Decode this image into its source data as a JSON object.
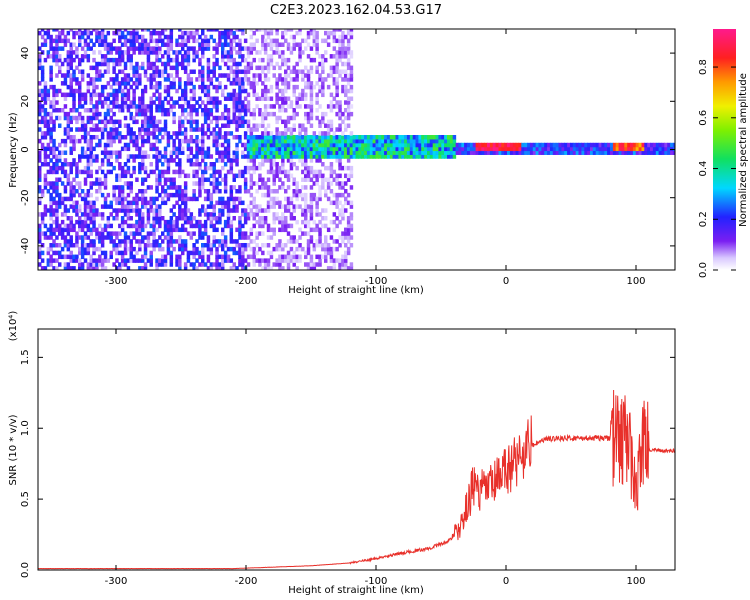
{
  "title": "C2E3.2023.162.04.53.G17",
  "colors": {
    "spectrogram_background": "#ffffff",
    "snr_line": "#e8302a",
    "axis": "#000000"
  },
  "chart_data": [
    {
      "type": "heatmap",
      "xlabel": "Height of straight line (km)",
      "ylabel": "Frequency (Hz)",
      "xlim": [
        -360,
        130
      ],
      "ylim": [
        -50,
        50
      ],
      "x_ticks": [
        -300,
        -200,
        -100,
        0,
        100
      ],
      "x_tick_labels": [
        "-300",
        "-200",
        "-100",
        "0",
        "100"
      ],
      "y_ticks": [
        -40,
        -20,
        0,
        20,
        40
      ],
      "y_tick_labels": [
        "-40",
        "-20",
        "0",
        "20",
        "40"
      ],
      "colormap": "rainbow (white-violet-blue-cyan-green-yellow-orange-red-magenta)",
      "colorbar": {
        "label": "Normalized spectral amplitude",
        "range": [
          0,
          0.95
        ],
        "ticks": [
          0.0,
          0.2,
          0.4,
          0.6,
          0.8
        ],
        "tick_labels": [
          "0.0",
          "0.2",
          "0.4",
          "0.6",
          "0.8"
        ]
      },
      "features": [
        {
          "x_range": [
            -360,
            -200
          ],
          "freq_range": [
            -50,
            50
          ],
          "amplitude": [
            0.05,
            0.25
          ]
        },
        {
          "x_range": [
            -200,
            -120
          ],
          "freq_range": [
            -50,
            50
          ],
          "amplitude": [
            0.02,
            0.12
          ]
        },
        {
          "x_range": [
            -200,
            -40
          ],
          "freq_center": 0,
          "freq_halfwidth": 5,
          "amplitude": [
            0.2,
            0.5
          ]
        },
        {
          "x_range": [
            -40,
            130
          ],
          "freq_center": 0,
          "freq_halfwidth": 2,
          "amplitude": [
            0.1,
            0.3
          ]
        },
        {
          "x_range": [
            -25,
            10
          ],
          "freq_center": 0,
          "amplitude": [
            0.8,
            0.95
          ]
        },
        {
          "x_range": [
            80,
            105
          ],
          "freq_center": 0,
          "amplitude": [
            0.7,
            0.9
          ]
        }
      ]
    },
    {
      "type": "line",
      "xlabel": "Height of straight line (km)",
      "ylabel": "SNR (10 * v/v)",
      "y_multiplier": "(x10⁴)",
      "xlim": [
        -360,
        130
      ],
      "ylim": [
        0,
        1.7
      ],
      "x_ticks": [
        -300,
        -200,
        -100,
        0,
        100
      ],
      "x_tick_labels": [
        "-300",
        "-200",
        "-100",
        "0",
        "100"
      ],
      "y_ticks": [
        0.0,
        0.5,
        1.0,
        1.5
      ],
      "y_tick_labels": [
        "0.0",
        "0.5",
        "1.0",
        "1.5"
      ],
      "series": [
        {
          "x": [
            -360,
            -330,
            -300,
            -270,
            -240,
            -210,
            -180,
            -150,
            -120,
            -100,
            -80,
            -60,
            -45,
            -35,
            -30,
            -25,
            -20,
            -15,
            -10,
            -5,
            0,
            10,
            20,
            30,
            40,
            60,
            80,
            90,
            95,
            100,
            105,
            110,
            120,
            130
          ],
          "y": [
            0.01,
            0.01,
            0.01,
            0.01,
            0.01,
            0.01,
            0.02,
            0.03,
            0.05,
            0.08,
            0.12,
            0.15,
            0.2,
            0.3,
            0.45,
            0.6,
            0.55,
            0.58,
            0.6,
            0.65,
            0.7,
            0.8,
            0.88,
            0.92,
            0.93,
            0.93,
            0.93,
            0.93,
            0.9,
            0.5,
            0.95,
            0.85,
            0.84,
            0.84
          ]
        }
      ]
    }
  ]
}
